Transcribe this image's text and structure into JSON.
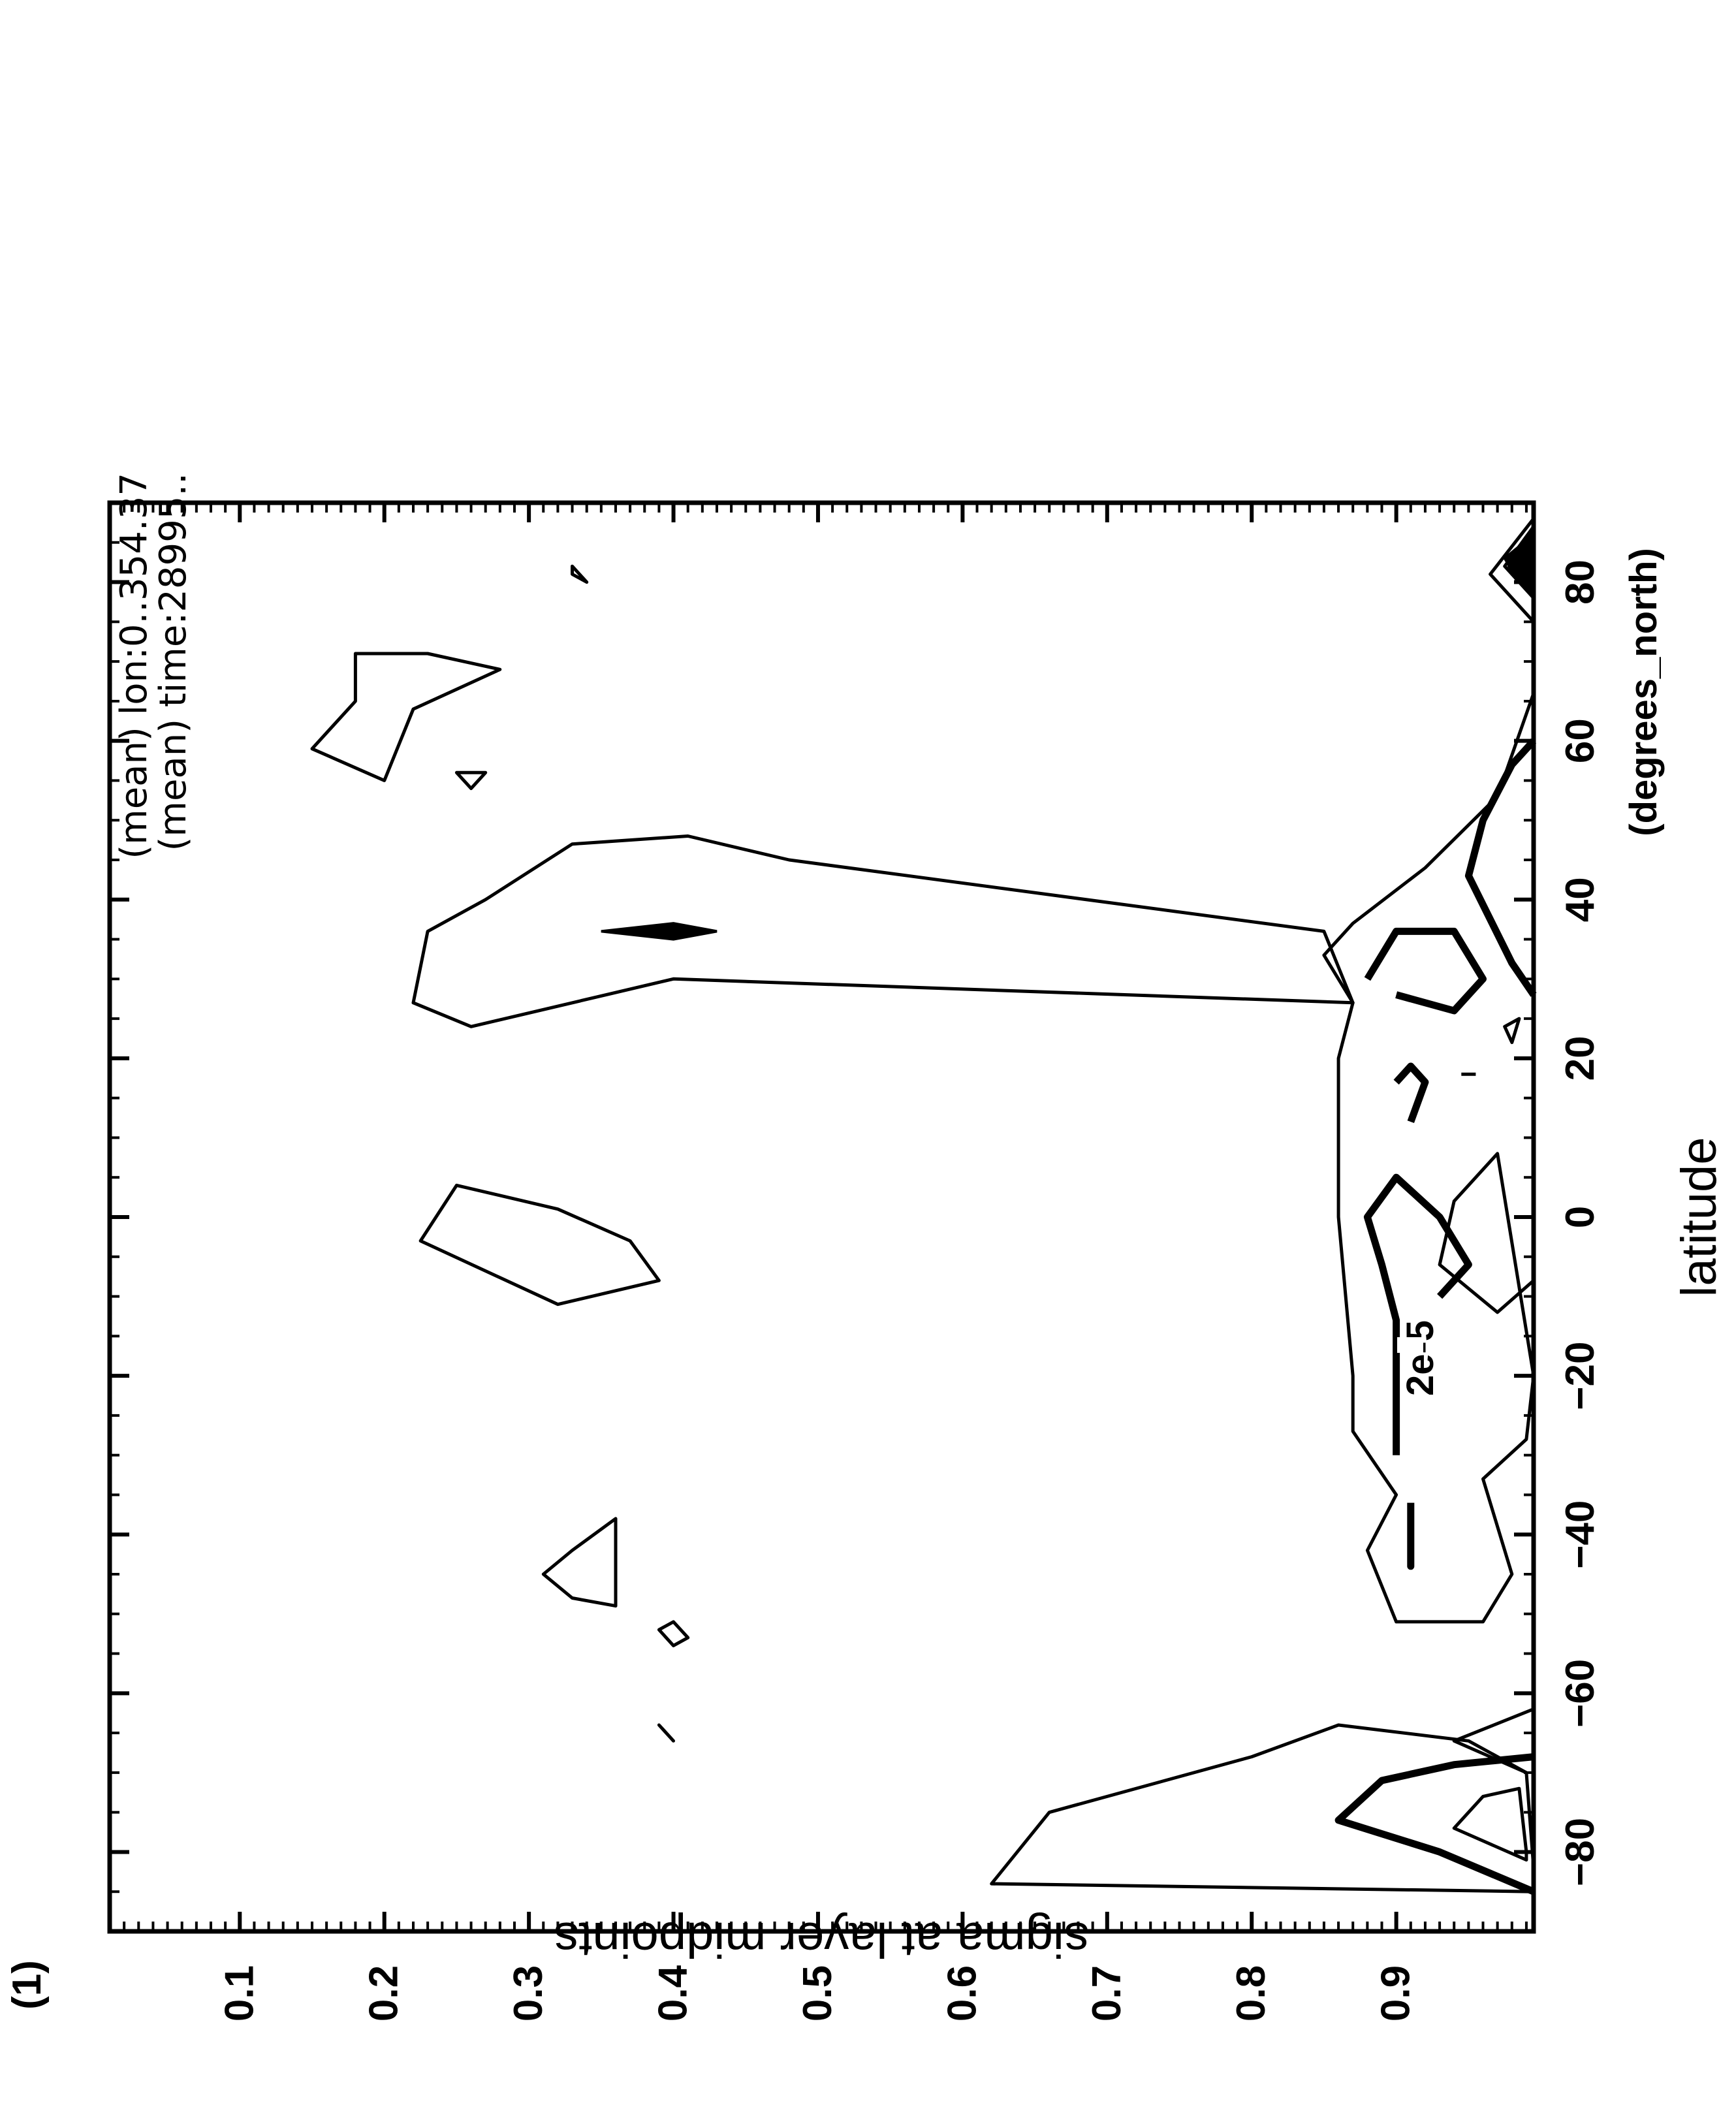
{
  "chart_data": {
    "type": "contour",
    "x": {
      "label": "latitude",
      "unit": "(degrees_north)",
      "range": [
        -90,
        90
      ],
      "ticks": [
        -80,
        -60,
        -40,
        -20,
        0,
        20,
        40,
        60,
        80
      ],
      "tick_labels": [
        "−80",
        "−60",
        "−40",
        "−20",
        "0",
        "20",
        "40",
        "60",
        "80"
      ]
    },
    "y": {
      "label": "sigma at layer midpoints",
      "range": [
        0.01,
        0.995
      ],
      "inverted": true,
      "ticks": [
        0.1,
        0.2,
        0.3,
        0.4,
        0.5,
        0.6,
        0.7,
        0.8,
        0.9
      ],
      "tick_labels": [
        "0.1",
        "0.2",
        "0.3",
        "0.4",
        "0.5",
        "0.6",
        "0.7",
        "0.8",
        "0.9"
      ]
    },
    "panel_label": "(1)",
    "header_lines": [
      "(mean)  lon:0..354.37",
      "(mean)  time:28995.."
    ],
    "contour_labels": [
      "2e-5"
    ],
    "orientation": "rotated 90 degrees counter-clockwise",
    "contours": [
      {
        "style": "thin",
        "closed": true,
        "points": [
          [
            -85,
            0.995
          ],
          [
            -84,
            0.62
          ],
          [
            -75,
            0.66
          ],
          [
            -68,
            0.8
          ],
          [
            -64,
            0.86
          ],
          [
            -66,
            0.95
          ],
          [
            -70,
            0.99
          ],
          [
            -82,
            0.995
          ]
        ]
      },
      {
        "style": "thin",
        "closed": false,
        "points": [
          [
            -70,
            0.99
          ],
          [
            -66,
            0.94
          ],
          [
            -62,
            0.995
          ]
        ]
      },
      {
        "style": "thick",
        "closed": false,
        "points": [
          [
            -85,
            0.995
          ],
          [
            -80,
            0.93
          ],
          [
            -76,
            0.86
          ],
          [
            -71,
            0.89
          ],
          [
            -69,
            0.94
          ],
          [
            -68,
            0.995
          ]
        ]
      },
      {
        "style": "thin",
        "closed": true,
        "points": [
          [
            -81,
            0.99
          ],
          [
            -77,
            0.94
          ],
          [
            -73,
            0.96
          ],
          [
            -72,
            0.985
          ],
          [
            -80,
            0.99
          ]
        ]
      },
      {
        "style": "thin",
        "closed": true,
        "points": [
          [
            -51,
            0.9
          ],
          [
            -42,
            0.88
          ],
          [
            -35,
            0.9
          ],
          [
            -27,
            0.87
          ],
          [
            -20,
            0.87
          ],
          [
            0,
            0.86
          ],
          [
            20,
            0.86
          ],
          [
            27,
            0.87
          ],
          [
            33,
            0.85
          ],
          [
            37,
            0.87
          ],
          [
            44,
            0.92
          ],
          [
            53,
            0.97
          ],
          [
            66,
            0.995
          ],
          [
            -8,
            0.995
          ],
          [
            -12,
            0.97
          ],
          [
            -6,
            0.93
          ],
          [
            2,
            0.94
          ],
          [
            8,
            0.97
          ],
          [
            -20,
            0.995
          ],
          [
            -28,
            0.99
          ],
          [
            -33,
            0.96
          ],
          [
            -45,
            0.98
          ],
          [
            -51,
            0.96
          ]
        ]
      },
      {
        "style": "thin",
        "closed": true,
        "points": [
          [
            -66,
            0.4
          ],
          [
            -64,
            0.39
          ],
          [
            -66,
            0.4
          ]
        ]
      },
      {
        "style": "thin",
        "closed": true,
        "points": [
          [
            -54,
            0.4
          ],
          [
            -52,
            0.39
          ],
          [
            -51,
            0.4
          ],
          [
            -53,
            0.41
          ]
        ]
      },
      {
        "style": "thin",
        "closed": true,
        "points": [
          [
            -45,
            0.31
          ],
          [
            -42,
            0.33
          ],
          [
            -38,
            0.36
          ],
          [
            -49,
            0.36
          ],
          [
            -48,
            0.33
          ]
        ]
      },
      {
        "style": "thin",
        "closed": true,
        "points": [
          [
            -3,
            0.225
          ],
          [
            -11,
            0.32
          ],
          [
            -8,
            0.39
          ],
          [
            -3,
            0.37
          ],
          [
            1,
            0.32
          ],
          [
            4,
            0.25
          ]
        ]
      },
      {
        "style": "thin",
        "closed": true,
        "points": [
          [
            27,
            0.87
          ],
          [
            30,
            0.4
          ],
          [
            24,
            0.26
          ],
          [
            27,
            0.22
          ],
          [
            36,
            0.23
          ],
          [
            40,
            0.27
          ],
          [
            47,
            0.33
          ],
          [
            48,
            0.41
          ],
          [
            45,
            0.48
          ],
          [
            36,
            0.85
          ]
        ]
      },
      {
        "style": "thin",
        "closed": true,
        "points": [
          [
            56,
            0.27
          ],
          [
            54,
            0.26
          ],
          [
            56,
            0.25
          ]
        ]
      },
      {
        "style": "thin",
        "closed": true,
        "points": [
          [
            59,
            0.15
          ],
          [
            55,
            0.2
          ],
          [
            64,
            0.22
          ],
          [
            69,
            0.28
          ],
          [
            71,
            0.23
          ],
          [
            71,
            0.18
          ],
          [
            65,
            0.18
          ]
        ]
      },
      {
        "style": "thin",
        "closed": true,
        "points": [
          [
            82,
            0.33
          ],
          [
            80,
            0.34
          ],
          [
            81,
            0.33
          ]
        ]
      }
    ],
    "bold_contours": [
      {
        "points": [
          [
            -36,
            0.91
          ],
          [
            -44,
            0.91
          ],
          [
            -36,
            0.91
          ]
        ]
      },
      {
        "points": [
          [
            -30,
            0.9
          ],
          [
            -20,
            0.9
          ],
          [
            -13,
            0.9
          ],
          [
            -6,
            0.89
          ],
          [
            0,
            0.88
          ],
          [
            5,
            0.9
          ],
          [
            0,
            0.93
          ],
          [
            -6,
            0.95
          ],
          [
            -10,
            0.93
          ]
        ]
      },
      {
        "points": [
          [
            12,
            0.91
          ],
          [
            17,
            0.92
          ],
          [
            19,
            0.91
          ],
          [
            17,
            0.9
          ]
        ]
      },
      {
        "points": [
          [
            30,
            0.88
          ],
          [
            36,
            0.9
          ],
          [
            36,
            0.94
          ],
          [
            30,
            0.96
          ],
          [
            26,
            0.94
          ],
          [
            28,
            0.9
          ]
        ]
      },
      {
        "points": [
          [
            28,
            0.995
          ],
          [
            32,
            0.98
          ],
          [
            43,
            0.95
          ],
          [
            50,
            0.96
          ],
          [
            57,
            0.98
          ],
          [
            60,
            0.995
          ]
        ]
      }
    ]
  }
}
